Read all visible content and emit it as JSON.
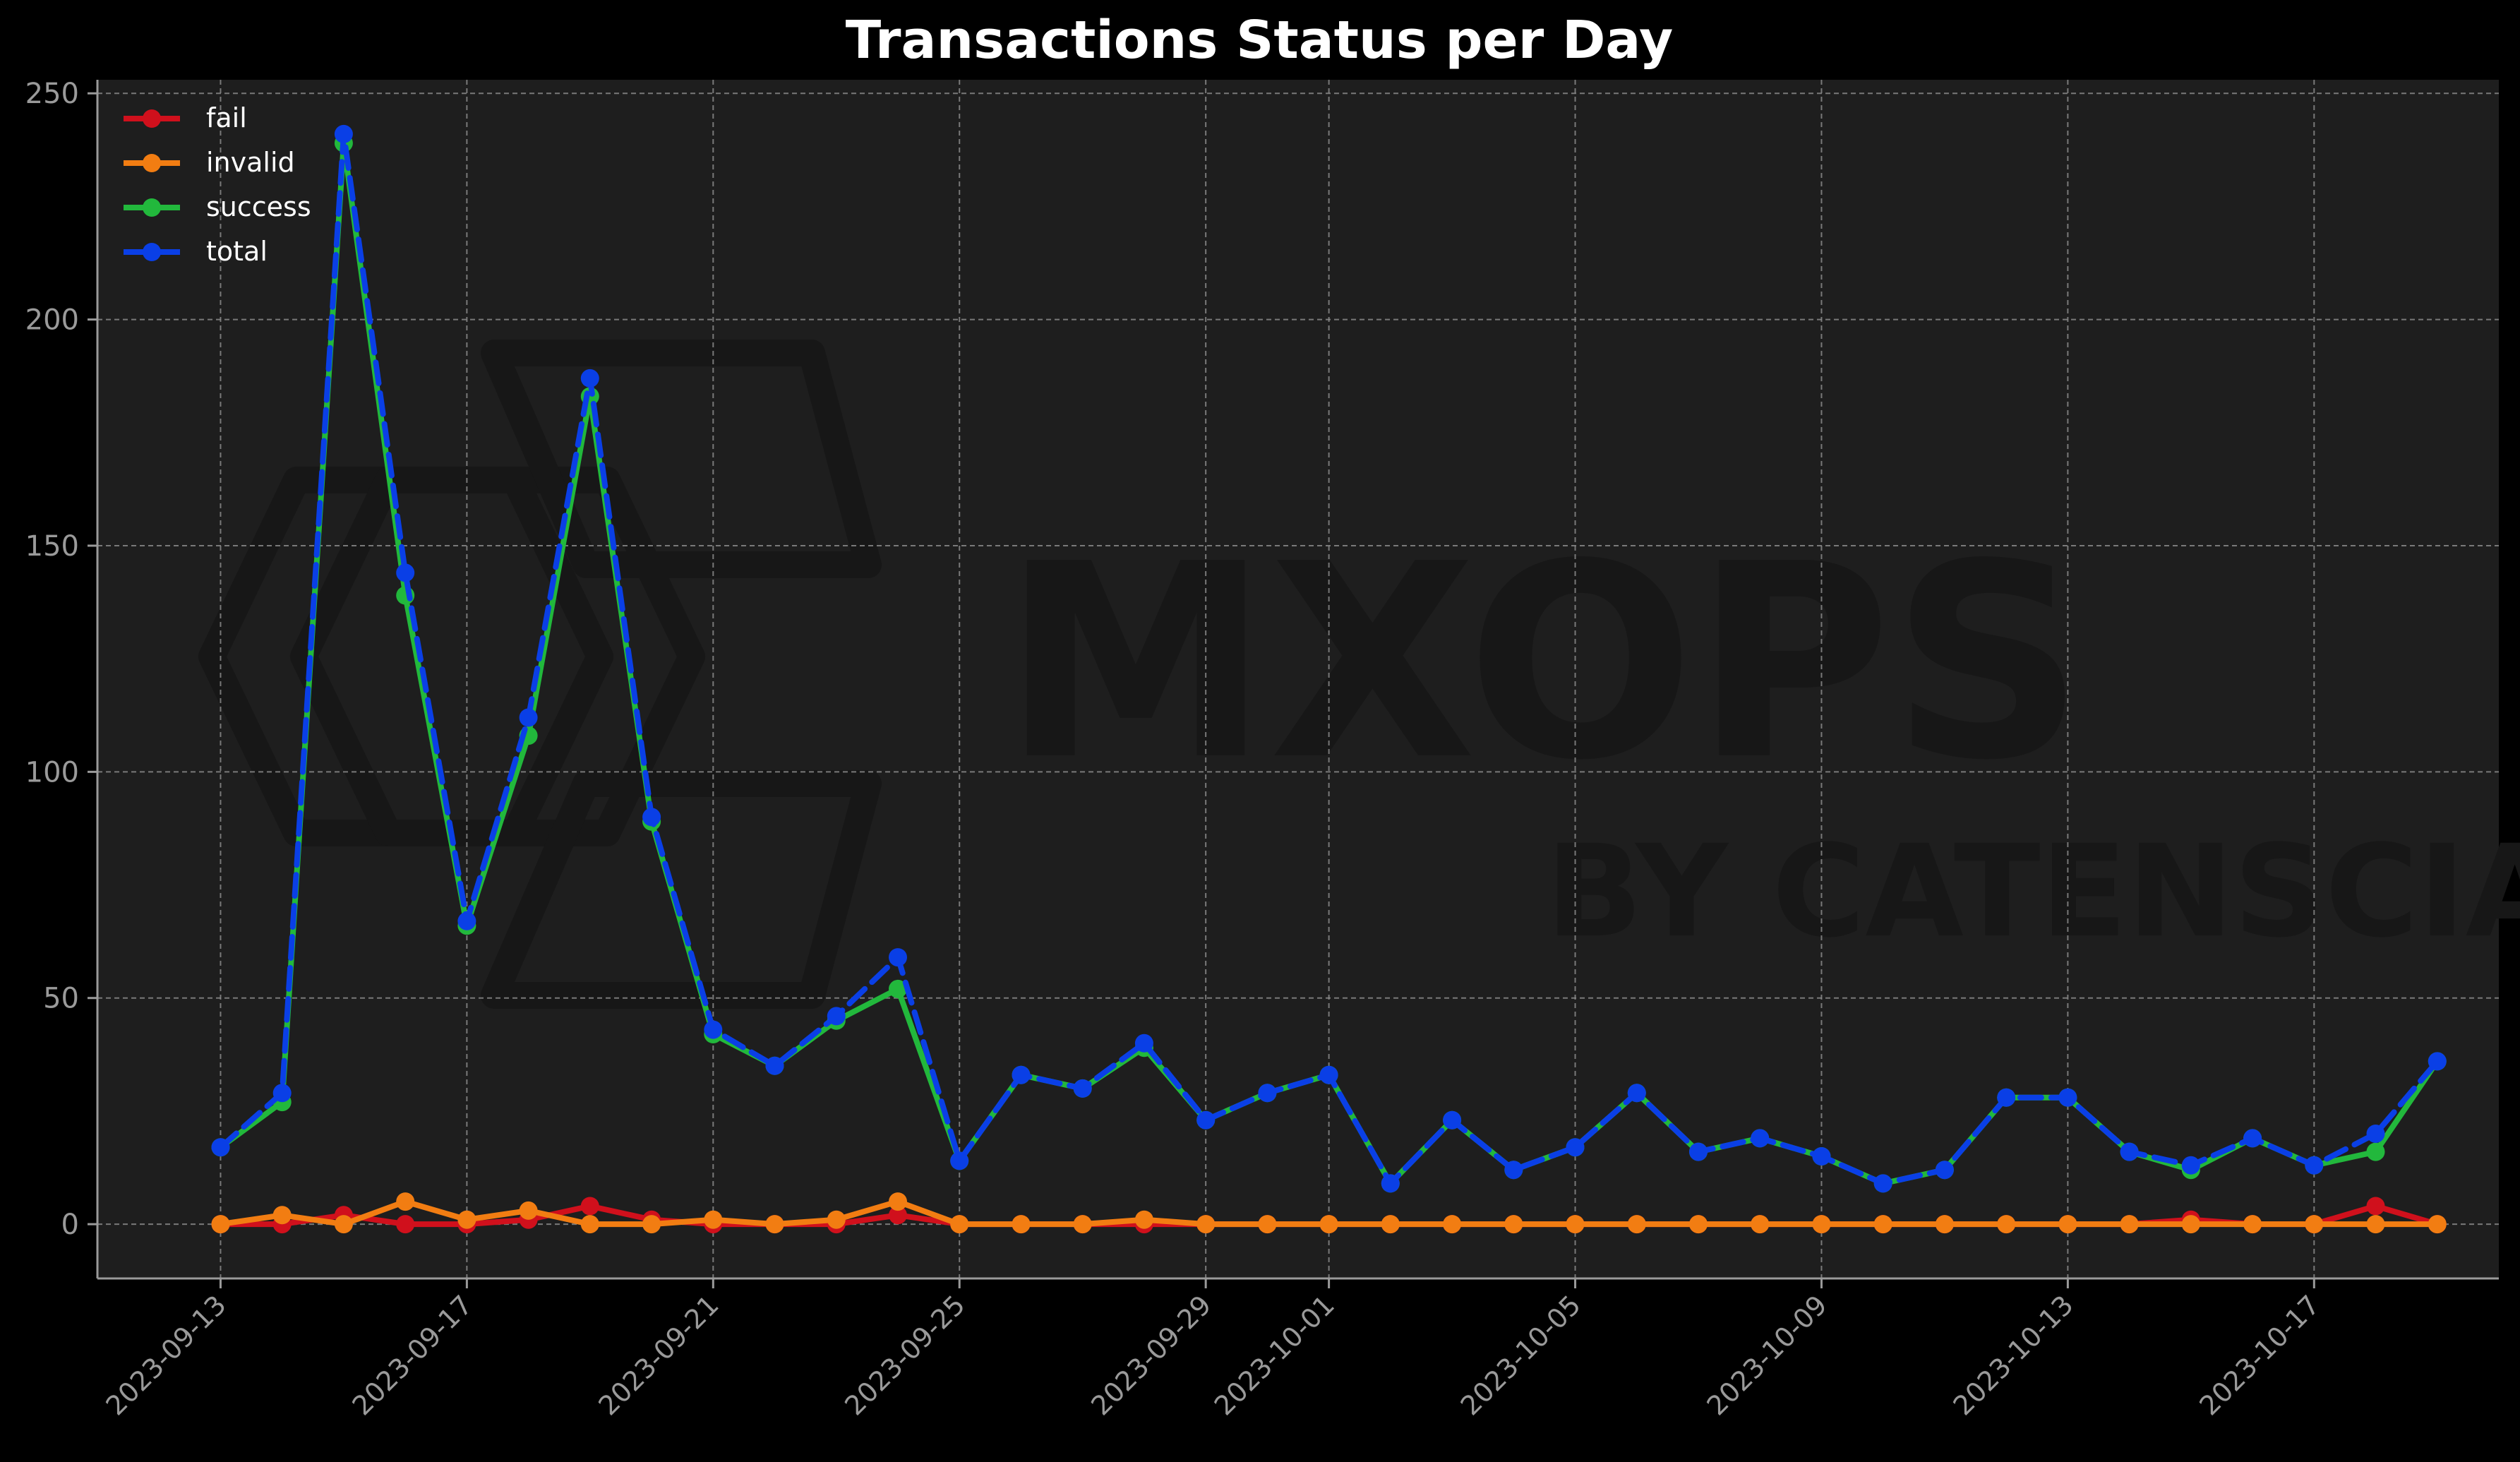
{
  "chart_data": {
    "type": "line",
    "title": "Transactions Status per Day",
    "xlabel": "",
    "ylabel": "",
    "ylim": [
      -12,
      253
    ],
    "x_range": [
      "2023-09-11",
      "2023-10-20"
    ],
    "y_ticks": [
      0,
      50,
      100,
      150,
      200,
      250
    ],
    "x_ticks": [
      "2023-09-13",
      "2023-09-17",
      "2023-09-21",
      "2023-09-25",
      "2023-09-29",
      "2023-10-01",
      "2023-10-05",
      "2023-10-09",
      "2023-10-13",
      "2023-10-17"
    ],
    "grid": true,
    "legend_position": "top-left",
    "x": [
      "2023-09-13",
      "2023-09-14",
      "2023-09-15",
      "2023-09-16",
      "2023-09-17",
      "2023-09-18",
      "2023-09-19",
      "2023-09-20",
      "2023-09-21",
      "2023-09-22",
      "2023-09-23",
      "2023-09-24",
      "2023-09-25",
      "2023-09-26",
      "2023-09-27",
      "2023-09-28",
      "2023-09-29",
      "2023-09-30",
      "2023-10-01",
      "2023-10-02",
      "2023-10-03",
      "2023-10-04",
      "2023-10-05",
      "2023-10-06",
      "2023-10-07",
      "2023-10-08",
      "2023-10-09",
      "2023-10-10",
      "2023-10-11",
      "2023-10-12",
      "2023-10-13",
      "2023-10-14",
      "2023-10-15",
      "2023-10-16",
      "2023-10-17",
      "2023-10-18",
      "2023-10-19"
    ],
    "series": [
      {
        "name": "fail",
        "color": "#d0101c",
        "dashed": false,
        "values": [
          0,
          0,
          2,
          0,
          0,
          1,
          4,
          1,
          0,
          0,
          0,
          2,
          0,
          0,
          0,
          0,
          0,
          0,
          0,
          0,
          0,
          0,
          0,
          0,
          0,
          0,
          0,
          0,
          0,
          0,
          0,
          0,
          1,
          0,
          0,
          4,
          0
        ]
      },
      {
        "name": "invalid",
        "color": "#f27d12",
        "dashed": false,
        "values": [
          0,
          2,
          0,
          5,
          1,
          3,
          0,
          0,
          1,
          0,
          1,
          5,
          0,
          0,
          0,
          1,
          0,
          0,
          0,
          0,
          0,
          0,
          0,
          0,
          0,
          0,
          0,
          0,
          0,
          0,
          0,
          0,
          0,
          0,
          0,
          0,
          0
        ]
      },
      {
        "name": "success",
        "color": "#22b83c",
        "dashed": false,
        "values": [
          17,
          27,
          239,
          139,
          66,
          108,
          183,
          89,
          42,
          35,
          45,
          52,
          14,
          33,
          30,
          39,
          23,
          29,
          33,
          9,
          23,
          12,
          17,
          29,
          16,
          19,
          15,
          9,
          12,
          28,
          28,
          16,
          12,
          19,
          13,
          16,
          36
        ]
      },
      {
        "name": "total",
        "color": "#0a3fe6",
        "dashed": true,
        "values": [
          17,
          29,
          241,
          144,
          67,
          112,
          187,
          90,
          43,
          35,
          46,
          59,
          14,
          33,
          30,
          40,
          23,
          29,
          33,
          9,
          23,
          12,
          17,
          29,
          16,
          19,
          15,
          9,
          12,
          28,
          28,
          16,
          13,
          19,
          13,
          20,
          36
        ]
      }
    ]
  },
  "watermark": {
    "brand": "MXOPS",
    "byline": "BY CATENSCIA",
    "color": "#171717"
  },
  "colors": {
    "page_background": "#000000",
    "plot_background": "#1e1e1e",
    "grid": "#8a8a8a",
    "axis": "#9a9a9a",
    "text": "#ffffff"
  }
}
